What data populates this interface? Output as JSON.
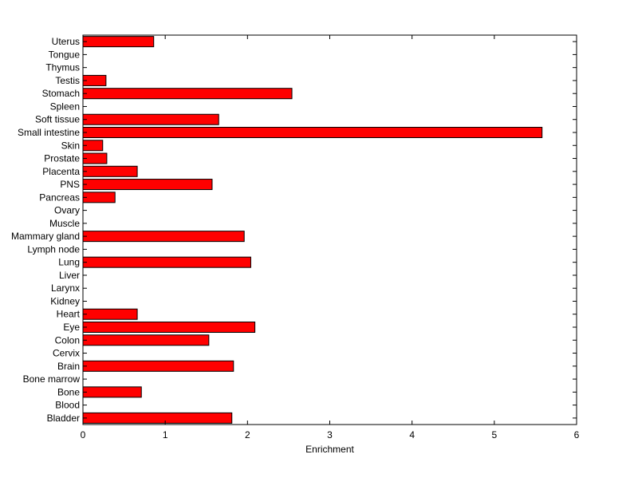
{
  "chart_data": {
    "type": "bar",
    "orientation": "horizontal",
    "xlabel": "Enrichment",
    "ylabel": "",
    "title": "",
    "xlim": [
      0,
      6
    ],
    "xticks": [
      0,
      1,
      2,
      3,
      4,
      5,
      6
    ],
    "grid": false,
    "legend": "none",
    "bar_color": "#ff0000",
    "categories": [
      "Uterus",
      "Tongue",
      "Thymus",
      "Testis",
      "Stomach",
      "Spleen",
      "Soft tissue",
      "Small intestine",
      "Skin",
      "Prostate",
      "Placenta",
      "PNS",
      "Pancreas",
      "Ovary",
      "Muscle",
      "Mammary gland",
      "Lymph node",
      "Lung",
      "Liver",
      "Larynx",
      "Kidney",
      "Heart",
      "Eye",
      "Colon",
      "Cervix",
      "Brain",
      "Bone marrow",
      "Bone",
      "Blood",
      "Bladder"
    ],
    "values": [
      0.86,
      0,
      0,
      0.28,
      2.54,
      0,
      1.65,
      5.58,
      0.24,
      0.29,
      0.66,
      1.57,
      0.39,
      0,
      0,
      1.96,
      0,
      2.04,
      0,
      0,
      0,
      0.66,
      2.09,
      1.53,
      0,
      1.83,
      0,
      0.71,
      0,
      1.81
    ]
  }
}
